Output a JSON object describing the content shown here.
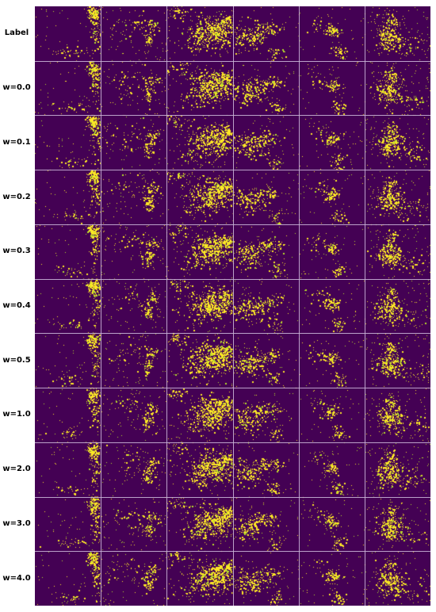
{
  "figure": {
    "row_labels": [
      "Label",
      "w=0.0",
      "w=0.1",
      "w=0.2",
      "w=0.3",
      "w=0.4",
      "w=0.5",
      "w=1.0",
      "w=2.0",
      "w=3.0",
      "w=4.0"
    ],
    "column_count": 6,
    "colors": {
      "background": "#440154",
      "points": "#fde725",
      "dim_points": "#b5de2b",
      "divider": "#c9b3d6"
    }
  }
}
